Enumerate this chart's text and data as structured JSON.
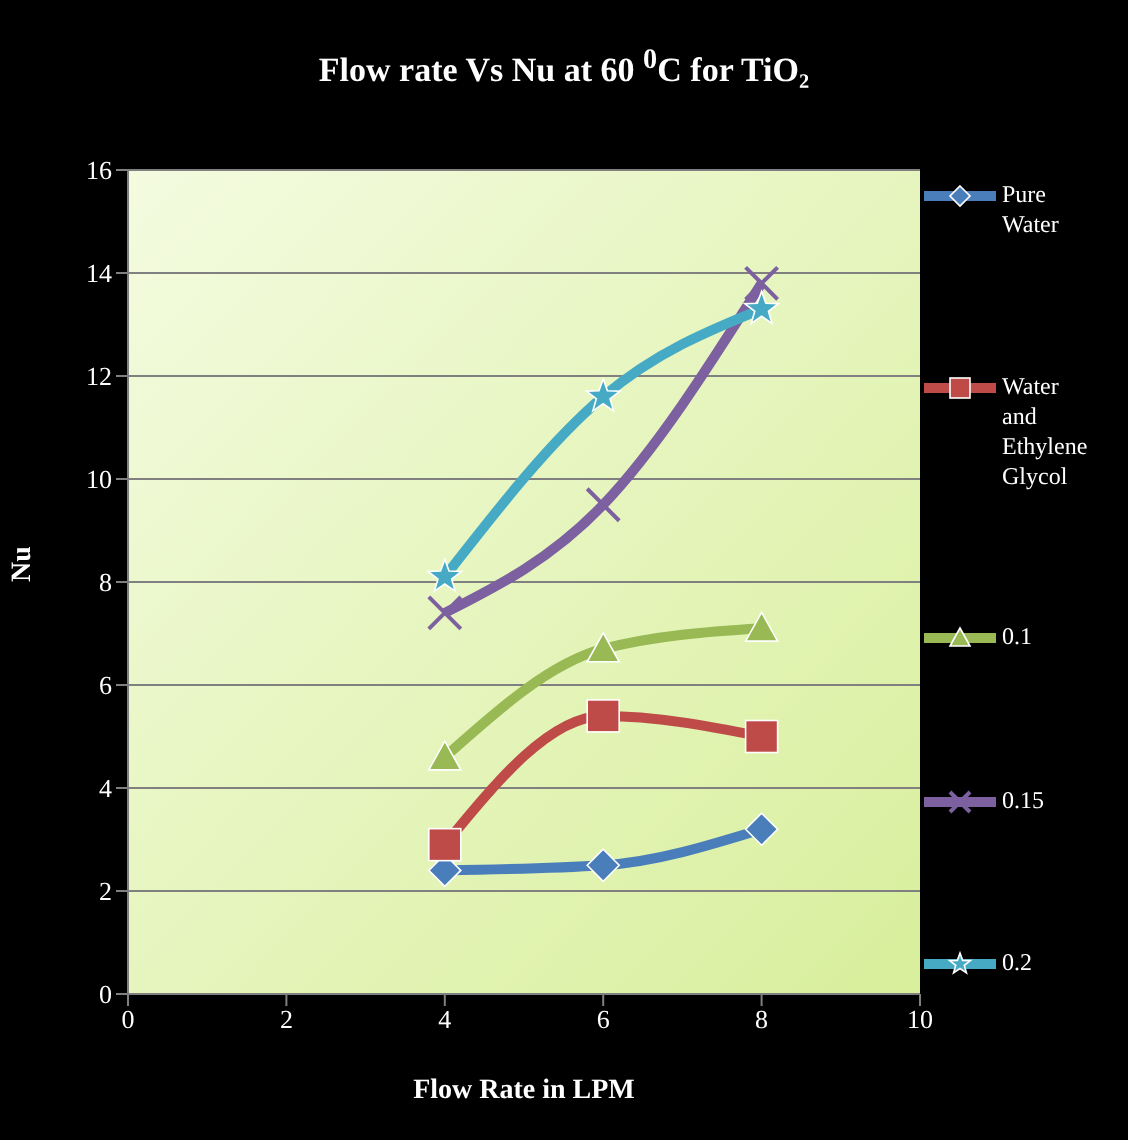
{
  "chart_data": {
    "type": "line",
    "title": "Flow  rate Vs Nu at 60 $^{0}$C for TiO₂",
    "xlabel": "Flow Rate in LPM",
    "ylabel": "Nu",
    "x": [
      4,
      6,
      8
    ],
    "xlim": [
      0,
      10
    ],
    "xticks": [
      0,
      2,
      4,
      6,
      8,
      10
    ],
    "ylim": [
      0,
      16
    ],
    "yticks": [
      0,
      2,
      4,
      6,
      8,
      10,
      12,
      14,
      16
    ],
    "grid": "y",
    "legend": "right",
    "series": [
      {
        "name": "Pure Water",
        "color": "#4a7ebb",
        "marker": "diamond",
        "values": [
          2.4,
          2.5,
          3.2
        ]
      },
      {
        "name": "Water and Ethylene Glycol",
        "color": "#be4b48",
        "marker": "square",
        "values": [
          2.9,
          5.4,
          5.0
        ]
      },
      {
        "name": "0.1",
        "color": "#98b954",
        "marker": "triangle",
        "values": [
          4.6,
          6.7,
          7.1
        ]
      },
      {
        "name": "0.15",
        "color": "#7d60a0",
        "marker": "cross",
        "values": [
          7.4,
          9.5,
          13.8
        ]
      },
      {
        "name": "0.2",
        "color": "#46aac5",
        "marker": "star",
        "values": [
          8.1,
          11.6,
          13.3
        ]
      }
    ]
  }
}
